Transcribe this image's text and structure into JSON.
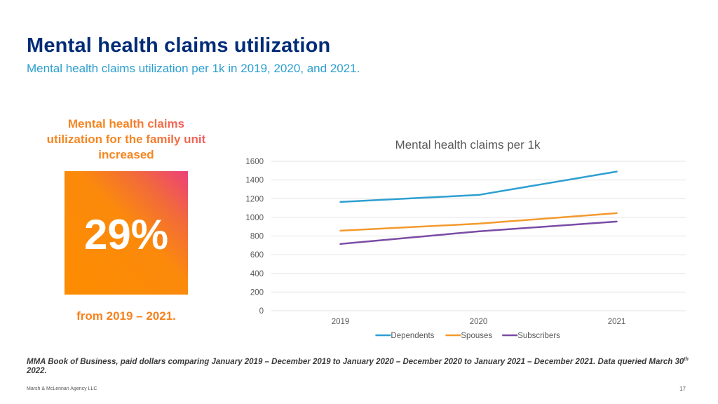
{
  "header": {
    "title": "Mental health claims utilization",
    "subtitle": "Mental health claims utilization per 1k in 2019, 2020, and 2021."
  },
  "callout": {
    "headline": "Mental health claims utilization for the family unit increased",
    "value": "29%",
    "footer": "from 2019 – 2021."
  },
  "chart_data": {
    "type": "line",
    "title": "Mental health claims per 1k",
    "xlabel": "",
    "ylabel": "",
    "categories": [
      "2019",
      "2020",
      "2021"
    ],
    "ylim": [
      0,
      1600
    ],
    "yticks": [
      0,
      200,
      400,
      600,
      800,
      1000,
      1200,
      1400,
      1600
    ],
    "grid": true,
    "legend": "bottom",
    "series": [
      {
        "name": "Dependents",
        "color": "#2e9fd1",
        "values": [
          1165,
          1240,
          1490
        ]
      },
      {
        "name": "Spouses",
        "color": "#f39a2e",
        "values": [
          857,
          932,
          1045
        ]
      },
      {
        "name": "Subscribers",
        "color": "#7a4ca5",
        "values": [
          715,
          850,
          955
        ]
      }
    ]
  },
  "footnote": {
    "text_before": "MMA Book of Business, paid dollars comparing January 2019 – December 2019 to January 2020 – December 2020 to January 2021 – December 2021. Data queried March 30",
    "superscript": "th",
    "text_after": " 2022."
  },
  "footer": {
    "company": "Marsh & McLennan Agency LLC",
    "page_number": "17"
  }
}
